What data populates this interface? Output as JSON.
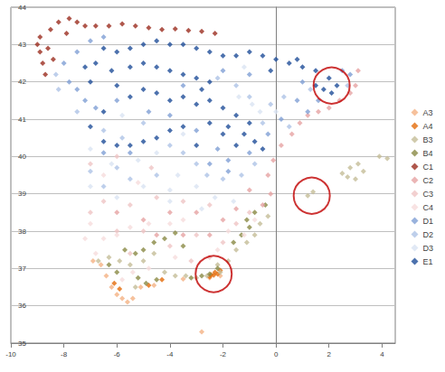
{
  "chart_data": {
    "type": "scatter",
    "marker": "diamond",
    "grid": true,
    "legend": "right",
    "xlim": [
      -10,
      4.5
    ],
    "xticks": [
      -10,
      -8,
      -6,
      -4,
      -2,
      0,
      2,
      4
    ],
    "ylim": [
      35,
      44
    ],
    "yticks": [
      35,
      36,
      37,
      38,
      39,
      40,
      41,
      42,
      43,
      44
    ],
    "series": [
      {
        "name": "A3",
        "color": "#f4b183",
        "values": [
          [
            -6.6,
            37.1
          ],
          [
            -6.4,
            36.8
          ],
          [
            -6.2,
            36.5
          ],
          [
            -6,
            36.3
          ],
          [
            -5.8,
            36.2
          ],
          [
            -5.6,
            36.1
          ],
          [
            -5.4,
            36.2
          ],
          [
            -5.1,
            36.5
          ],
          [
            -4.6,
            36.55
          ],
          [
            -3.5,
            36.72
          ],
          [
            -2.8,
            35.3
          ],
          [
            -2.5,
            36.75
          ],
          [
            -2.1,
            36.8
          ],
          [
            -6.9,
            37.2
          ]
        ]
      },
      {
        "name": "A4",
        "color": "#e46c0a",
        "values": [
          [
            -6.1,
            36.6
          ],
          [
            -5.9,
            36.45
          ],
          [
            -4.8,
            36.55
          ],
          [
            -4.3,
            36.7
          ],
          [
            -2.5,
            36.78
          ],
          [
            -2.35,
            36.82
          ],
          [
            -2.2,
            36.85
          ],
          [
            -2.1,
            36.95
          ],
          [
            -2.3,
            36.9
          ],
          [
            -2.45,
            36.83
          ]
        ]
      },
      {
        "name": "B3",
        "color": "#c4bd97",
        "values": [
          [
            -6.3,
            37.3
          ],
          [
            -5.9,
            37.2
          ],
          [
            -5.5,
            37.1
          ],
          [
            -5,
            37.2
          ],
          [
            -4.6,
            37.4
          ],
          [
            -4.2,
            36.9
          ],
          [
            -3.8,
            36.8
          ],
          [
            -3.4,
            36.8
          ],
          [
            -3,
            36.75
          ],
          [
            -2.6,
            36.8
          ],
          [
            -2.1,
            36.9
          ],
          [
            -1.8,
            37.2
          ],
          [
            -1.5,
            37.5
          ],
          [
            -1.1,
            37.7
          ],
          [
            -0.8,
            37.9
          ],
          [
            -0.6,
            38.2
          ],
          [
            -0.3,
            38.4
          ],
          [
            1.2,
            38.95
          ],
          [
            1.4,
            39.05
          ],
          [
            2.5,
            39.55
          ],
          [
            2.8,
            39.7
          ],
          [
            3.1,
            39.8
          ],
          [
            3.3,
            39.6
          ],
          [
            3,
            39.4
          ],
          [
            2.7,
            39.45
          ],
          [
            3.9,
            40
          ],
          [
            4.2,
            39.95
          ],
          [
            -5.3,
            36.5
          ],
          [
            -6.7,
            37.2
          ],
          [
            -2.2,
            37.1
          ]
        ]
      },
      {
        "name": "B4",
        "color": "#8a8a45",
        "values": [
          [
            -6.3,
            37.1
          ],
          [
            -6,
            36.9
          ],
          [
            -5.7,
            37.5
          ],
          [
            -5.3,
            37.4
          ],
          [
            -5,
            37.5
          ],
          [
            -4.6,
            37.7
          ],
          [
            -4.2,
            37.8
          ],
          [
            -3.8,
            37.95
          ],
          [
            -3.5,
            37.6
          ],
          [
            -5.2,
            36.75
          ],
          [
            -4.9,
            36.6
          ],
          [
            -4.5,
            36.7
          ],
          [
            -3.2,
            36.75
          ],
          [
            -2.8,
            36.8
          ],
          [
            -2.5,
            36.85
          ],
          [
            -2.2,
            37
          ],
          [
            -1.6,
            37.7
          ],
          [
            -1.3,
            37.9
          ],
          [
            -1,
            38.1
          ],
          [
            -0.8,
            38.5
          ],
          [
            -0.4,
            38.7
          ],
          [
            -1.1,
            38.3
          ]
        ]
      },
      {
        "name": "C1",
        "color": "#9b2d1f",
        "values": [
          [
            -9,
            43
          ],
          [
            -8.9,
            42.8
          ],
          [
            -8.8,
            42.5
          ],
          [
            -8.7,
            42.2
          ],
          [
            -8.9,
            43.2
          ],
          [
            -8.5,
            43.4
          ],
          [
            -8.2,
            43.6
          ],
          [
            -7.8,
            43.7
          ],
          [
            -7.5,
            43.6
          ],
          [
            -7.2,
            43.5
          ],
          [
            -6.8,
            43.5
          ],
          [
            -6.3,
            43.5
          ],
          [
            -5.8,
            43.55
          ],
          [
            -5.3,
            43.5
          ],
          [
            -4.8,
            43.45
          ],
          [
            -4.3,
            43.4
          ],
          [
            -3.8,
            43.42
          ],
          [
            -3.3,
            43.38
          ],
          [
            -2.8,
            43.35
          ],
          [
            -2.3,
            43.3
          ],
          [
            -8.6,
            42.9
          ],
          [
            -8.4,
            42.6
          ],
          [
            -7.9,
            43.3
          ]
        ]
      },
      {
        "name": "C2",
        "color": "#e6a3a3",
        "values": [
          [
            3.1,
            42.3
          ],
          [
            3,
            41.9
          ],
          [
            2.8,
            41.7
          ],
          [
            2.4,
            41.5
          ],
          [
            2,
            41.3
          ],
          [
            1.6,
            41.2
          ],
          [
            1.2,
            41.1
          ],
          [
            0.9,
            40.9
          ],
          [
            0.6,
            40.6
          ],
          [
            0.2,
            40.3
          ],
          [
            -0.1,
            39.9
          ],
          [
            -0.3,
            39.5
          ],
          [
            -0.2,
            39
          ],
          [
            -0.5,
            38.7
          ],
          [
            -2,
            38.3
          ],
          [
            -3,
            38.5
          ],
          [
            -4,
            38.5
          ],
          [
            -5,
            38.3
          ],
          [
            -6,
            38.5
          ],
          [
            -2.5,
            37.9
          ],
          [
            -3.5,
            37.9
          ],
          [
            -1,
            39.1
          ],
          [
            -1.5,
            38.6
          ],
          [
            -4.5,
            37.9
          ]
        ]
      },
      {
        "name": "C3",
        "color": "#efc4c4",
        "values": [
          [
            -6.5,
            38.8
          ],
          [
            -5.5,
            38.7
          ],
          [
            -4.5,
            38.9
          ],
          [
            -3.5,
            38.8
          ],
          [
            -2.5,
            38.7
          ],
          [
            -1.5,
            38.2
          ],
          [
            -1,
            38.5
          ],
          [
            -5,
            38
          ],
          [
            -6,
            38
          ],
          [
            -7,
            38.5
          ],
          [
            -3,
            37.9
          ],
          [
            -2,
            37.7
          ],
          [
            -4,
            37.6
          ],
          [
            -5.5,
            37.4
          ],
          [
            -3.2,
            37.2
          ],
          [
            -2.5,
            37.3
          ],
          [
            -7,
            39.8
          ],
          [
            -6,
            40
          ],
          [
            -4.7,
            39.7
          ]
        ]
      },
      {
        "name": "C4",
        "color": "#f6dcdc",
        "values": [
          [
            -7,
            38.2
          ],
          [
            -6.5,
            37.8
          ],
          [
            -6,
            37.9
          ],
          [
            -5.5,
            38.1
          ],
          [
            -4.8,
            38.2
          ],
          [
            -4,
            38.2
          ],
          [
            -3.5,
            38.3
          ],
          [
            -7.2,
            37.8
          ],
          [
            -6.8,
            37.4
          ],
          [
            -5.8,
            36.7
          ],
          [
            -5.4,
            36.9
          ],
          [
            -4.8,
            37
          ],
          [
            -3.8,
            37.3
          ],
          [
            -2.2,
            37.5
          ],
          [
            -1.8,
            38
          ],
          [
            -0.8,
            38.3
          ],
          [
            -1.2,
            37.9
          ],
          [
            -6.5,
            39.5
          ],
          [
            -5.2,
            39.3
          ]
        ]
      },
      {
        "name": "D1",
        "color": "#7f9fd4",
        "values": [
          [
            -8,
            42.5
          ],
          [
            -7.8,
            42
          ],
          [
            -7.5,
            41.8
          ],
          [
            -7.2,
            41.5
          ],
          [
            -6.8,
            41.3
          ],
          [
            -7.5,
            42.8
          ],
          [
            -7,
            43.1
          ],
          [
            -6.5,
            43.2
          ],
          [
            -6,
            41.5
          ],
          [
            -4.8,
            41.2
          ],
          [
            -4,
            41.1
          ],
          [
            -3,
            40.7
          ],
          [
            -2.2,
            40.2
          ],
          [
            -1.8,
            39.9
          ],
          [
            -1,
            40.1
          ],
          [
            -0.3,
            40.6
          ],
          [
            0.2,
            41
          ],
          [
            0.8,
            41.5
          ],
          [
            1.2,
            41.2
          ],
          [
            1.6,
            41.5
          ],
          [
            2.5,
            42.3
          ],
          [
            2.8,
            42.2
          ],
          [
            1,
            42
          ],
          [
            -1,
            42.2
          ],
          [
            -2,
            42.3
          ],
          [
            -3.5,
            41.9
          ],
          [
            -5.5,
            40.1
          ],
          [
            -6.5,
            40.1
          ],
          [
            -1.8,
            39.6
          ],
          [
            -2.5,
            39.8
          ]
        ]
      },
      {
        "name": "D2",
        "color": "#aec3e6",
        "values": [
          [
            -8.3,
            42.2
          ],
          [
            -8.2,
            41.8
          ],
          [
            -7.5,
            41.2
          ],
          [
            -6.5,
            40.7
          ],
          [
            -5.8,
            40.5
          ],
          [
            -5,
            40.9
          ],
          [
            -4,
            40.3
          ],
          [
            -3.5,
            40.1
          ],
          [
            -3,
            39.8
          ],
          [
            -2.6,
            39.5
          ],
          [
            -2,
            39.4
          ],
          [
            -1.3,
            39.5
          ],
          [
            -0.8,
            39.8
          ],
          [
            -0.5,
            40.9
          ],
          [
            -0.2,
            41.4
          ],
          [
            0.3,
            41.6
          ],
          [
            0.5,
            40.8
          ],
          [
            -1,
            41.6
          ],
          [
            -1.5,
            41.9
          ],
          [
            -2.2,
            42.1
          ],
          [
            1.3,
            41.8
          ],
          [
            2.7,
            41.9
          ],
          [
            -4.5,
            39.5
          ],
          [
            -5.5,
            39.4
          ],
          [
            -6,
            39.7
          ],
          [
            -7,
            39.6
          ],
          [
            -6.5,
            39.2
          ]
        ]
      },
      {
        "name": "D3",
        "color": "#d9e3f3",
        "values": [
          [
            -7,
            40.2
          ],
          [
            -6.2,
            39.8
          ],
          [
            -5.2,
            39.9
          ],
          [
            -4.5,
            40.1
          ],
          [
            -3.7,
            39.5
          ],
          [
            -3,
            39.2
          ],
          [
            -2.3,
            38.9
          ],
          [
            -1.6,
            38.8
          ],
          [
            -4,
            39.1
          ],
          [
            -5,
            39.2
          ],
          [
            -6,
            38.9
          ],
          [
            -7,
            39.2
          ],
          [
            -0.6,
            41.2
          ],
          [
            -0.9,
            41.4
          ],
          [
            -1.4,
            41.6
          ],
          [
            0,
            41.2
          ],
          [
            -4,
            38.8
          ],
          [
            -2.8,
            38.6
          ],
          [
            -3.5,
            40.6
          ],
          [
            -5.8,
            41.1
          ],
          [
            -1.2,
            42.4
          ]
        ]
      },
      {
        "name": "E1",
        "color": "#1f4e99",
        "values": [
          [
            -6.5,
            42.9
          ],
          [
            -6,
            42.8
          ],
          [
            -5.5,
            42.9
          ],
          [
            -5,
            43
          ],
          [
            -4.5,
            43.1
          ],
          [
            -4,
            43
          ],
          [
            -3.5,
            43
          ],
          [
            -3,
            42.9
          ],
          [
            -2.5,
            42.8
          ],
          [
            -2,
            42.7
          ],
          [
            -1.5,
            42.7
          ],
          [
            -1,
            42.8
          ],
          [
            -0.5,
            42.7
          ],
          [
            0,
            42.6
          ],
          [
            0.5,
            42.5
          ],
          [
            1,
            42.4
          ],
          [
            1.5,
            42.3
          ],
          [
            2,
            42.1
          ],
          [
            2.3,
            41.9
          ],
          [
            1.8,
            41.8
          ],
          [
            2.1,
            41.7
          ],
          [
            1.5,
            41.9
          ],
          [
            -6.8,
            42.5
          ],
          [
            -6.2,
            42.3
          ],
          [
            -5.5,
            42.4
          ],
          [
            -5,
            42.5
          ],
          [
            -4.5,
            42.4
          ],
          [
            -4,
            42.3
          ],
          [
            -3.5,
            42.2
          ],
          [
            -3,
            42.1
          ],
          [
            -2.5,
            42
          ],
          [
            -6,
            41.9
          ],
          [
            -5.5,
            41.6
          ],
          [
            -5,
            41.8
          ],
          [
            -4.5,
            41.7
          ],
          [
            -4,
            41.5
          ],
          [
            -3.5,
            41.6
          ],
          [
            -3,
            41.4
          ],
          [
            -2.5,
            41.5
          ],
          [
            -2,
            41.3
          ],
          [
            -1.5,
            41.1
          ],
          [
            -1.8,
            40.8
          ],
          [
            -1.2,
            40.6
          ],
          [
            -0.8,
            40.4
          ],
          [
            -0.5,
            40.2
          ],
          [
            -1.5,
            40.3
          ],
          [
            -2,
            40.6
          ],
          [
            -2.5,
            40.9
          ],
          [
            -3.5,
            40.8
          ],
          [
            -4,
            40.7
          ],
          [
            -4.5,
            40.5
          ],
          [
            -5,
            40.4
          ],
          [
            -5.5,
            40.3
          ],
          [
            -6,
            40.3
          ],
          [
            -6.5,
            40.4
          ],
          [
            -7,
            40.8
          ],
          [
            -6.5,
            41.2
          ],
          [
            -7,
            42
          ],
          [
            -7.2,
            42.4
          ],
          [
            -3,
            40.3
          ],
          [
            -1,
            40.9
          ],
          [
            0.8,
            42.6
          ],
          [
            -0.2,
            42.3
          ],
          [
            -2.8,
            41.8
          ]
        ]
      }
    ],
    "highlight_circles": {
      "color": "#c00000",
      "values": [
        [
          2.1,
          41.9
        ],
        [
          1.35,
          38.95
        ],
        [
          -2.35,
          36.85
        ]
      ]
    }
  }
}
